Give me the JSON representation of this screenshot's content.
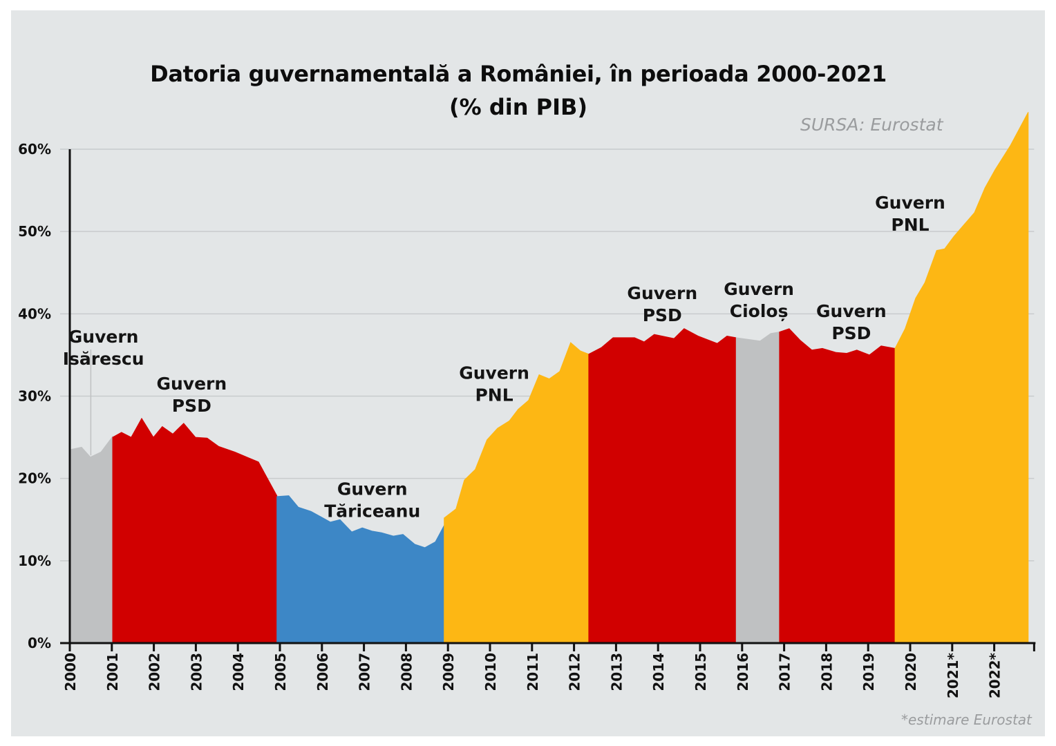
{
  "chart_data": {
    "type": "area",
    "title": "Datoria guvernamentală a României, în  perioada 2000-2021",
    "subtitle": "(% din PIB)",
    "source": "SURSA: Eurostat",
    "footnote": "*estimare Eurostat",
    "xlabel": "",
    "ylabel": "",
    "ylim": [
      0,
      60
    ],
    "xlim": [
      2000,
      2022.95
    ],
    "grid": true,
    "y_ticks": [
      {
        "value": 0,
        "label": "0%"
      },
      {
        "value": 10,
        "label": "10%"
      },
      {
        "value": 20,
        "label": "20%"
      },
      {
        "value": 30,
        "label": "30%"
      },
      {
        "value": 40,
        "label": "40%"
      },
      {
        "value": 50,
        "label": "50%"
      },
      {
        "value": 60,
        "label": "60%"
      }
    ],
    "x_ticks": [
      {
        "value": 2000,
        "label": "2000"
      },
      {
        "value": 2001,
        "label": "2001"
      },
      {
        "value": 2002,
        "label": "2002"
      },
      {
        "value": 2003,
        "label": "2003"
      },
      {
        "value": 2004,
        "label": "2004"
      },
      {
        "value": 2005,
        "label": "2005"
      },
      {
        "value": 2006,
        "label": "2006"
      },
      {
        "value": 2007,
        "label": "2007"
      },
      {
        "value": 2008,
        "label": "2008"
      },
      {
        "value": 2009,
        "label": "2009"
      },
      {
        "value": 2010,
        "label": "2010"
      },
      {
        "value": 2011,
        "label": "2011"
      },
      {
        "value": 2012,
        "label": "2012"
      },
      {
        "value": 2013,
        "label": "2013"
      },
      {
        "value": 2014,
        "label": "2014"
      },
      {
        "value": 2015,
        "label": "2015"
      },
      {
        "value": 2016,
        "label": "2016"
      },
      {
        "value": 2017,
        "label": "2017"
      },
      {
        "value": 2018,
        "label": "2018"
      },
      {
        "value": 2019,
        "label": "2019"
      },
      {
        "value": 2020,
        "label": "2020"
      },
      {
        "value": 2021,
        "label": "2021*"
      },
      {
        "value": 2022,
        "label": "2022*"
      }
    ],
    "series": [
      {
        "name": "Guvern Isărescu",
        "label_lines": [
          "Guvern",
          "Isărescu"
        ],
        "color": "#bfc1c2",
        "label_pos": {
          "x": 2000.8,
          "y": 36.5
        },
        "leader_line": true,
        "points": [
          [
            2000.0,
            23.5
          ],
          [
            2000.28,
            23.8
          ],
          [
            2000.49,
            22.6
          ],
          [
            2000.74,
            23.2
          ],
          [
            2001.02,
            25.1
          ]
        ]
      },
      {
        "name": "Guvern PSD",
        "label_lines": [
          "Guvern",
          "PSD"
        ],
        "color": "#d10000",
        "label_pos": {
          "x": 2002.9,
          "y": 30.8
        },
        "points": [
          [
            2001.02,
            25.0
          ],
          [
            2001.23,
            25.6
          ],
          [
            2001.46,
            25.0
          ],
          [
            2001.71,
            27.3
          ],
          [
            2001.99,
            25.0
          ],
          [
            2002.2,
            26.3
          ],
          [
            2002.45,
            25.4
          ],
          [
            2002.71,
            26.7
          ],
          [
            2002.99,
            25.0
          ],
          [
            2003.27,
            24.9
          ],
          [
            2003.54,
            23.9
          ],
          [
            2003.93,
            23.2
          ],
          [
            2004.26,
            22.5
          ],
          [
            2004.49,
            22.0
          ],
          [
            2004.93,
            17.9
          ]
        ]
      },
      {
        "name": "Guvern Tăriceanu",
        "label_lines": [
          "Guvern",
          "Tăriceanu"
        ],
        "color": "#3d87c6",
        "label_pos": {
          "x": 2007.2,
          "y": 18.0
        },
        "points": [
          [
            2004.93,
            17.8
          ],
          [
            2005.21,
            17.9
          ],
          [
            2005.44,
            16.5
          ],
          [
            2005.74,
            16.0
          ],
          [
            2005.99,
            15.3
          ],
          [
            2006.2,
            14.7
          ],
          [
            2006.43,
            15.0
          ],
          [
            2006.71,
            13.5
          ],
          [
            2006.96,
            14.0
          ],
          [
            2007.19,
            13.6
          ],
          [
            2007.42,
            13.4
          ],
          [
            2007.7,
            13.0
          ],
          [
            2007.93,
            13.2
          ],
          [
            2008.21,
            12.0
          ],
          [
            2008.45,
            11.6
          ],
          [
            2008.7,
            12.3
          ],
          [
            2008.91,
            14.3
          ]
        ]
      },
      {
        "name": "Guvern PNL",
        "label_lines": [
          "Guvern",
          "PNL"
        ],
        "color": "#fdb714",
        "label_pos": {
          "x": 2010.1,
          "y": 32.1
        },
        "points": [
          [
            2008.91,
            15.2
          ],
          [
            2009.19,
            16.3
          ],
          [
            2009.39,
            19.8
          ],
          [
            2009.65,
            21.1
          ],
          [
            2009.93,
            24.7
          ],
          [
            2010.18,
            26.1
          ],
          [
            2010.46,
            27.0
          ],
          [
            2010.67,
            28.4
          ],
          [
            2010.92,
            29.5
          ],
          [
            2011.17,
            32.6
          ],
          [
            2011.41,
            32.1
          ],
          [
            2011.66,
            33.0
          ],
          [
            2011.92,
            36.5
          ],
          [
            2012.15,
            35.5
          ],
          [
            2012.35,
            35.1
          ]
        ]
      },
      {
        "name": "Guvern PSD",
        "label_lines": [
          "Guvern",
          "PSD"
        ],
        "color": "#d10000",
        "label_pos": {
          "x": 2014.1,
          "y": 41.8
        },
        "points": [
          [
            2012.35,
            35.1
          ],
          [
            2012.65,
            35.9
          ],
          [
            2012.93,
            37.1
          ],
          [
            2013.44,
            37.1
          ],
          [
            2013.67,
            36.6
          ],
          [
            2013.91,
            37.5
          ],
          [
            2014.38,
            37.0
          ],
          [
            2014.62,
            38.2
          ],
          [
            2014.95,
            37.3
          ],
          [
            2015.41,
            36.4
          ],
          [
            2015.64,
            37.3
          ],
          [
            2015.86,
            37.1
          ]
        ]
      },
      {
        "name": "Guvern Cioloș",
        "label_lines": [
          "Guvern",
          "Cioloș"
        ],
        "color": "#bfc1c2",
        "label_pos": {
          "x": 2016.4,
          "y": 42.3
        },
        "points": [
          [
            2015.86,
            37.1
          ],
          [
            2016.43,
            36.7
          ],
          [
            2016.68,
            37.6
          ],
          [
            2016.89,
            37.8
          ]
        ]
      },
      {
        "name": "Guvern PSD",
        "label_lines": [
          "Guvern",
          "PSD"
        ],
        "color": "#d10000",
        "label_pos": {
          "x": 2018.6,
          "y": 39.6
        },
        "points": [
          [
            2016.89,
            37.8
          ],
          [
            2017.12,
            38.2
          ],
          [
            2017.38,
            36.8
          ],
          [
            2017.66,
            35.6
          ],
          [
            2017.91,
            35.8
          ],
          [
            2018.24,
            35.3
          ],
          [
            2018.49,
            35.2
          ],
          [
            2018.73,
            35.6
          ],
          [
            2019.03,
            35.0
          ],
          [
            2019.31,
            36.1
          ],
          [
            2019.64,
            35.8
          ]
        ]
      },
      {
        "name": "Guvern PNL",
        "label_lines": [
          "Guvern",
          "PNL"
        ],
        "color": "#fdb714",
        "label_pos": {
          "x": 2020.0,
          "y": 52.8
        },
        "points": [
          [
            2019.64,
            35.8
          ],
          [
            2019.88,
            38.2
          ],
          [
            2020.13,
            41.9
          ],
          [
            2020.35,
            43.8
          ],
          [
            2020.63,
            47.7
          ],
          [
            2020.82,
            47.9
          ],
          [
            2021.04,
            49.4
          ],
          [
            2021.53,
            52.3
          ],
          [
            2021.78,
            55.3
          ],
          [
            2022.02,
            57.5
          ],
          [
            2022.38,
            60.4
          ],
          [
            2022.81,
            64.5
          ]
        ]
      }
    ]
  }
}
